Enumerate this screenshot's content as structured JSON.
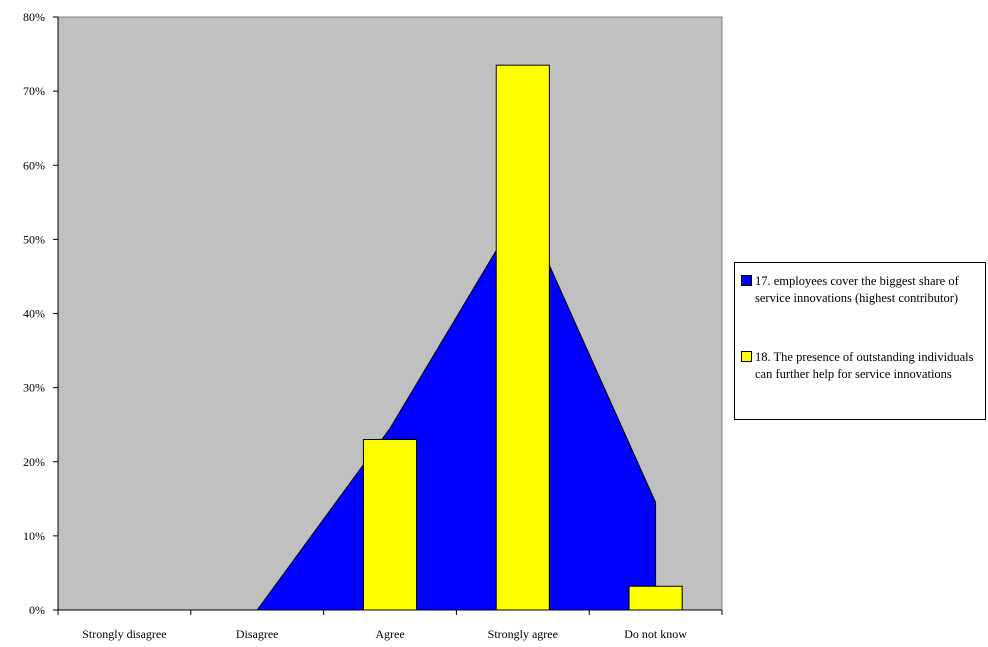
{
  "chart_data": {
    "type": "bar",
    "title": "",
    "xlabel": "",
    "ylabel": "",
    "categories": [
      "Strongly disagree",
      "Disagree",
      "Agree",
      "Strongly agree",
      "Do not know"
    ],
    "y_tick_labels": [
      "0%",
      "10%",
      "20%",
      "30%",
      "40%",
      "50%",
      "60%",
      "70%",
      "80%"
    ],
    "ylim": [
      0,
      80
    ],
    "grid": false,
    "legend_position": "right",
    "plot_background": "#c0c0c0",
    "series": [
      {
        "name": "17. employees cover the biggest share of service innovations (highest contributor)",
        "type": "area",
        "color": "#0000ff",
        "values": [
          0,
          0,
          24.5,
          54.5,
          14.5
        ]
      },
      {
        "name": "18. The presence of outstanding individuals can further help for service innovations",
        "type": "bar",
        "color": "#ffff00",
        "values": [
          0,
          0,
          23,
          73.5,
          3.2
        ]
      }
    ]
  },
  "legend": {
    "items": [
      {
        "label": "17. employees cover the biggest share of service innovations (highest contributor)",
        "color": "#0000ff"
      },
      {
        "label": "18. The presence of outstanding individuals can further help for service innovations",
        "color": "#ffff00"
      }
    ]
  }
}
